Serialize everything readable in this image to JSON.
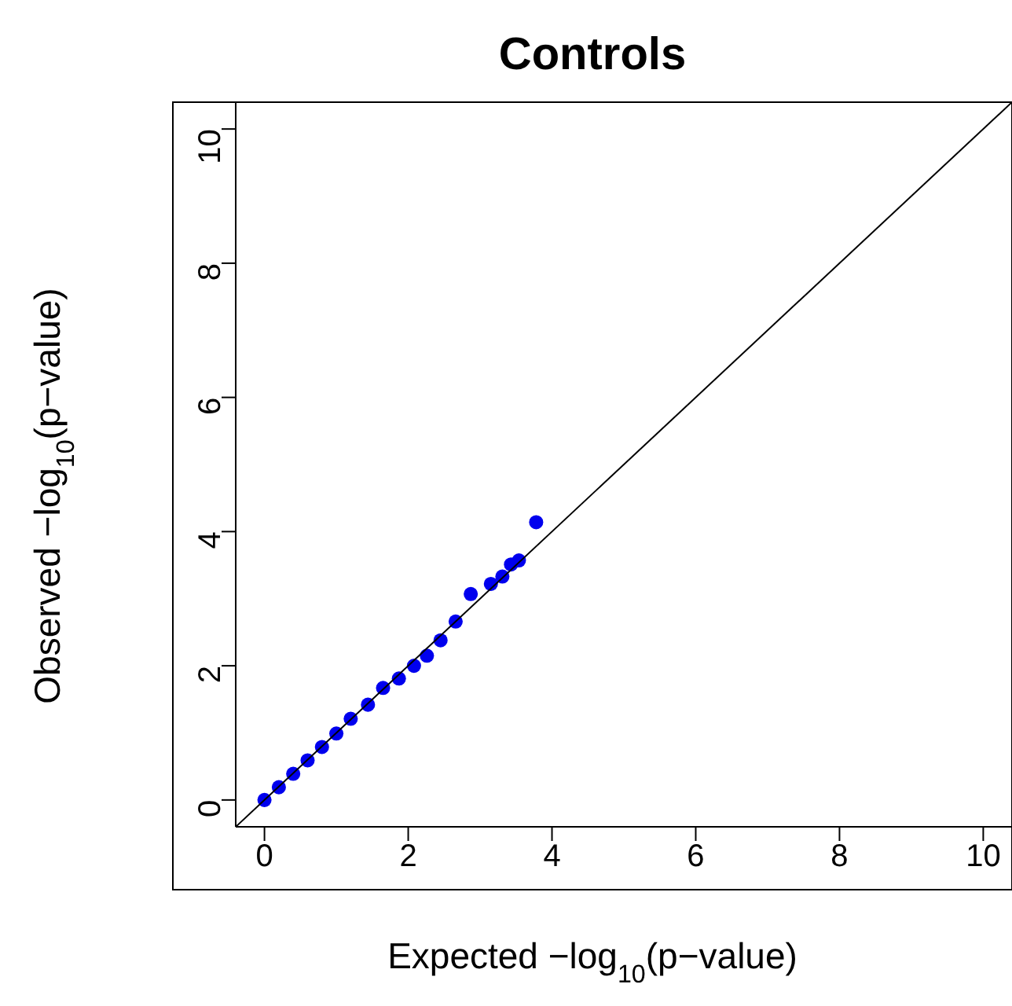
{
  "chart_data": {
    "type": "scatter",
    "title": "Controls",
    "xlabel": "Expected −log$_{10}$(p−value)",
    "ylabel": "Observed −log$_{10}$(p−value)",
    "xlim": [
      -0.4,
      10.4
    ],
    "ylim": [
      -0.4,
      10.4
    ],
    "xticks": [
      0,
      2,
      4,
      6,
      8,
      10
    ],
    "yticks": [
      0,
      2,
      4,
      6,
      8,
      10
    ],
    "grid": false,
    "series": [
      {
        "type": "scatter",
        "color": "#0000ee",
        "marker": "circle",
        "x": [
          0,
          0.2,
          0.4,
          0.6,
          0.8,
          1.0,
          1.2,
          1.44,
          1.65,
          1.87,
          2.08,
          2.26,
          2.45,
          2.66,
          2.87,
          3.15,
          3.31,
          3.43,
          3.54,
          3.78
        ],
        "values": [
          0,
          0.19,
          0.39,
          0.59,
          0.79,
          0.99,
          1.21,
          1.42,
          1.67,
          1.81,
          2.0,
          2.15,
          2.38,
          2.66,
          3.07,
          3.22,
          3.33,
          3.51,
          3.57,
          4.14
        ]
      },
      {
        "type": "line",
        "color": "#000000",
        "marker": "none",
        "x": [
          -0.4,
          10.4
        ],
        "values": [
          -0.4,
          10.4
        ]
      }
    ]
  }
}
